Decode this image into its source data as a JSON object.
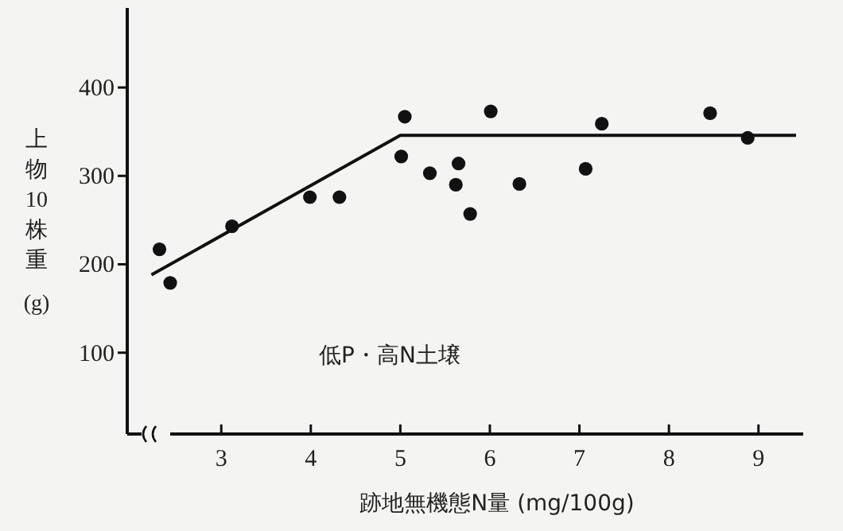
{
  "chart_data": {
    "type": "scatter",
    "xlabel": "跡地無機態N量 (mg/100g)",
    "ylabel": "上物10株重(g)",
    "annotations": [
      "低P・高N土壌"
    ],
    "xlim": [
      1.95,
      9.5
    ],
    "ylim": [
      8,
      490
    ],
    "xticks": [
      3,
      4,
      5,
      6,
      7,
      8,
      9
    ],
    "yticks": [
      100,
      200,
      300,
      400
    ],
    "grid": false,
    "marker": "circle",
    "series": [
      {
        "type": "scatter",
        "color": "#111111",
        "x": [
          2.31,
          2.43,
          3.12,
          3.99,
          4.32,
          5.05,
          5.01,
          5.33,
          5.65,
          5.62,
          5.78,
          6.01,
          6.33,
          7.07,
          7.25,
          8.46,
          8.88
        ],
        "values": [
          217,
          179,
          243,
          276,
          276,
          367,
          322,
          303,
          314,
          290,
          257,
          373,
          291,
          308,
          359,
          371,
          343
        ]
      },
      {
        "type": "line",
        "color": "#111111",
        "line_style": "solid",
        "marker": "none",
        "x": [
          2.22,
          5,
          9.42
        ],
        "values": [
          188,
          346,
          346
        ]
      }
    ]
  }
}
